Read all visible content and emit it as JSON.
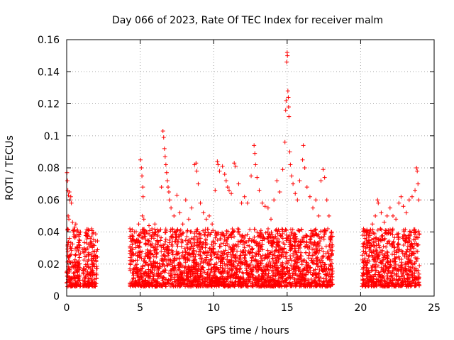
{
  "chart_data": {
    "type": "scatter",
    "title": "Day 066 of 2023, Rate Of TEC Index for receiver malm",
    "xlabel": "GPS time / hours",
    "ylabel": "ROTI / TECUs",
    "xlim": [
      0,
      25
    ],
    "ylim": [
      0,
      0.16
    ],
    "x_ticks": [
      "0",
      "5",
      "10",
      "15",
      "20",
      "25"
    ],
    "y_ticks": [
      "0",
      "0.02",
      "0.04",
      "0.06",
      "0.08",
      "0.1",
      "0.12",
      "0.14",
      "0.16"
    ],
    "grid": true,
    "marker": "+",
    "color": "#ff0000",
    "series": [
      {
        "values": [
          [
            0.02,
            0.077
          ],
          [
            0.05,
            0.072
          ],
          [
            0.08,
            0.066
          ],
          [
            0.12,
            0.063
          ],
          [
            0.18,
            0.065
          ],
          [
            0.22,
            0.06
          ],
          [
            0.28,
            0.062
          ],
          [
            0.32,
            0.058
          ],
          [
            0.1,
            0.05
          ],
          [
            0.15,
            0.048
          ],
          [
            0.4,
            0.046
          ],
          [
            0.45,
            0.04
          ],
          [
            0.55,
            0.043
          ],
          [
            0.62,
            0.045
          ],
          [
            0.7,
            0.038
          ],
          [
            0.08,
            0.032
          ],
          [
            0.2,
            0.025
          ],
          [
            0.35,
            0.018
          ],
          [
            0.5,
            0.012
          ],
          [
            0.65,
            0.008
          ],
          [
            0.75,
            0.015
          ],
          [
            0.82,
            0.022
          ],
          [
            0.9,
            0.01
          ],
          [
            0.3,
            0.006
          ],
          [
            1.2,
            0.03
          ],
          [
            1.35,
            0.038
          ],
          [
            1.5,
            0.041
          ],
          [
            1.6,
            0.036
          ],
          [
            1.7,
            0.042
          ],
          [
            1.8,
            0.032
          ],
          [
            1.9,
            0.028
          ],
          [
            2.0,
            0.022
          ],
          [
            1.3,
            0.012
          ],
          [
            1.55,
            0.008
          ],
          [
            1.75,
            0.015
          ],
          [
            1.95,
            0.006
          ],
          [
            4.3,
            0.042
          ],
          [
            4.45,
            0.038
          ],
          [
            4.6,
            0.04
          ],
          [
            4.75,
            0.035
          ],
          [
            4.9,
            0.045
          ],
          [
            5.02,
            0.085
          ],
          [
            5.08,
            0.08
          ],
          [
            5.12,
            0.075
          ],
          [
            5.18,
            0.068
          ],
          [
            5.2,
            0.062
          ],
          [
            5.15,
            0.05
          ],
          [
            5.25,
            0.048
          ],
          [
            5.4,
            0.04
          ],
          [
            5.6,
            0.044
          ],
          [
            5.8,
            0.042
          ],
          [
            6.0,
            0.045
          ],
          [
            6.2,
            0.038
          ],
          [
            6.45,
            0.068
          ],
          [
            6.55,
            0.103
          ],
          [
            6.6,
            0.099
          ],
          [
            6.65,
            0.092
          ],
          [
            6.7,
            0.087
          ],
          [
            6.75,
            0.082
          ],
          [
            6.8,
            0.077
          ],
          [
            6.85,
            0.072
          ],
          [
            6.9,
            0.068
          ],
          [
            6.95,
            0.065
          ],
          [
            7.0,
            0.06
          ],
          [
            7.1,
            0.055
          ],
          [
            7.3,
            0.05
          ],
          [
            7.5,
            0.063
          ],
          [
            7.7,
            0.052
          ],
          [
            7.9,
            0.045
          ],
          [
            8.1,
            0.06
          ],
          [
            8.3,
            0.048
          ],
          [
            8.5,
            0.055
          ],
          [
            8.7,
            0.082
          ],
          [
            8.8,
            0.083
          ],
          [
            8.85,
            0.078
          ],
          [
            8.95,
            0.07
          ],
          [
            9.1,
            0.058
          ],
          [
            9.3,
            0.052
          ],
          [
            9.5,
            0.048
          ],
          [
            9.7,
            0.05
          ],
          [
            9.9,
            0.045
          ],
          [
            10.1,
            0.066
          ],
          [
            10.25,
            0.084
          ],
          [
            10.3,
            0.082
          ],
          [
            10.4,
            0.078
          ],
          [
            10.6,
            0.081
          ],
          [
            10.75,
            0.076
          ],
          [
            10.85,
            0.072
          ],
          [
            10.95,
            0.068
          ],
          [
            11.05,
            0.066
          ],
          [
            11.2,
            0.064
          ],
          [
            11.4,
            0.083
          ],
          [
            11.5,
            0.081
          ],
          [
            11.7,
            0.07
          ],
          [
            11.9,
            0.058
          ],
          [
            12.1,
            0.062
          ],
          [
            12.3,
            0.058
          ],
          [
            12.55,
            0.075
          ],
          [
            12.75,
            0.094
          ],
          [
            12.8,
            0.089
          ],
          [
            12.85,
            0.082
          ],
          [
            12.95,
            0.074
          ],
          [
            13.1,
            0.066
          ],
          [
            13.3,
            0.058
          ],
          [
            13.5,
            0.056
          ],
          [
            13.7,
            0.055
          ],
          [
            13.9,
            0.048
          ],
          [
            14.1,
            0.06
          ],
          [
            14.3,
            0.072
          ],
          [
            14.5,
            0.065
          ],
          [
            14.7,
            0.079
          ],
          [
            14.85,
            0.096
          ],
          [
            14.9,
            0.116
          ],
          [
            14.93,
            0.122
          ],
          [
            14.97,
            0.146
          ],
          [
            15.0,
            0.152
          ],
          [
            15.02,
            0.15
          ],
          [
            15.05,
            0.128
          ],
          [
            15.08,
            0.124
          ],
          [
            15.1,
            0.118
          ],
          [
            15.12,
            0.112
          ],
          [
            15.18,
            0.09
          ],
          [
            15.22,
            0.082
          ],
          [
            15.3,
            0.075
          ],
          [
            15.4,
            0.07
          ],
          [
            15.55,
            0.064
          ],
          [
            15.7,
            0.06
          ],
          [
            15.85,
            0.072
          ],
          [
            16.05,
            0.085
          ],
          [
            16.1,
            0.094
          ],
          [
            16.2,
            0.08
          ],
          [
            16.35,
            0.068
          ],
          [
            16.55,
            0.062
          ],
          [
            16.75,
            0.055
          ],
          [
            16.95,
            0.06
          ],
          [
            17.15,
            0.05
          ],
          [
            17.3,
            0.072
          ],
          [
            17.45,
            0.079
          ],
          [
            17.55,
            0.074
          ],
          [
            17.7,
            0.06
          ],
          [
            17.85,
            0.05
          ],
          [
            18.0,
            0.04
          ],
          [
            20.2,
            0.042
          ],
          [
            20.4,
            0.038
          ],
          [
            20.6,
            0.04
          ],
          [
            20.8,
            0.045
          ],
          [
            21.0,
            0.05
          ],
          [
            21.15,
            0.06
          ],
          [
            21.2,
            0.058
          ],
          [
            21.4,
            0.052
          ],
          [
            21.6,
            0.046
          ],
          [
            21.8,
            0.05
          ],
          [
            22.0,
            0.055
          ],
          [
            22.2,
            0.05
          ],
          [
            22.4,
            0.048
          ],
          [
            22.6,
            0.058
          ],
          [
            22.75,
            0.062
          ],
          [
            22.9,
            0.056
          ],
          [
            23.1,
            0.052
          ],
          [
            23.3,
            0.06
          ],
          [
            23.5,
            0.062
          ],
          [
            23.7,
            0.066
          ],
          [
            23.8,
            0.08
          ],
          [
            23.85,
            0.078
          ],
          [
            23.9,
            0.07
          ],
          [
            23.95,
            0.06
          ]
        ]
      }
    ]
  }
}
